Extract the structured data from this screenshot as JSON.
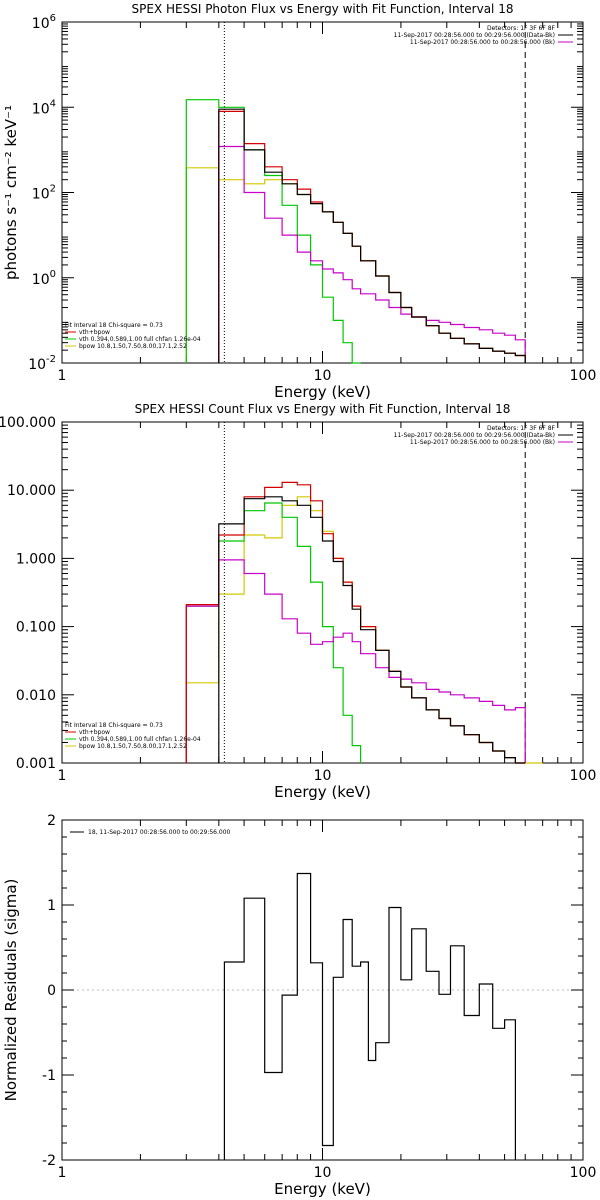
{
  "colors": {
    "background": "#ffffff",
    "axis": "#000000",
    "data": "#000000",
    "sum": "#d40000",
    "vth": "#00c800",
    "bpow": "#d4c800",
    "bk": "#c800c8"
  },
  "chart_data": [
    {
      "type": "line",
      "step": true,
      "title": "SPEX HESSI Photon Flux vs Energy with Fit Function, Interval 18",
      "xlabel": "Energy (keV)",
      "ylabel": "photons s⁻¹ cm⁻² keV⁻¹",
      "xscale": "log",
      "yscale": "log",
      "xlim": [
        1,
        100
      ],
      "ylim": [
        0.01,
        1000000
      ],
      "x_ticks": [
        {
          "v": 1,
          "label": "1"
        },
        {
          "v": 10,
          "label": "10"
        },
        {
          "v": 100,
          "label": "100"
        }
      ],
      "y_ticks": [
        {
          "v": 0.01,
          "base": "10",
          "exp": "-2"
        },
        {
          "v": 1,
          "base": "10",
          "exp": "0"
        },
        {
          "v": 100,
          "base": "10",
          "exp": "2"
        },
        {
          "v": 10000,
          "base": "10",
          "exp": "4"
        },
        {
          "v": 1000000,
          "base": "10",
          "exp": "6"
        }
      ],
      "legend_top": [
        "Detectors: 1F 3F 6F 8F",
        "11-Sep-2017 00:28:56.000 to 00:29:56.000 (Data-Bk)",
        "11-Sep-2017 00:28:56.000 to 00:28:56.000 (Bk)"
      ],
      "legend_bottom": [
        "Fit Interval 18   Chi-square = 0.73",
        "vth+bpow",
        "vth 0.394,0.589,1.00  full chfan 1.26e-04",
        "bpow 10.8,1.50,7.50,8.00,17.1,2.52"
      ],
      "vlines": [
        4.2,
        60
      ],
      "edges": [
        3,
        4,
        5,
        6,
        7,
        8,
        9,
        10,
        11,
        12,
        13,
        14,
        16,
        18,
        20,
        22,
        25,
        28,
        31,
        35,
        40,
        45,
        50,
        55,
        60
      ],
      "series": [
        {
          "name": "Data-Bk",
          "color": "black",
          "values": [
            null,
            9000,
            1000,
            300,
            160,
            90,
            55,
            35,
            20,
            11,
            5.5,
            2.5,
            1.1,
            0.45,
            0.2,
            0.12,
            0.075,
            0.05,
            0.038,
            0.028,
            0.022,
            0.019,
            0.017,
            0.015
          ]
        },
        {
          "name": "vth+bpow",
          "color": "red",
          "values": [
            null,
            8000,
            1400,
            400,
            200,
            120,
            60,
            35,
            20,
            11,
            5.5,
            2.5,
            1.1,
            0.45,
            0.2,
            0.12,
            0.075,
            0.05,
            0.038,
            0.028,
            0.022,
            0.019,
            0.017,
            0.015
          ]
        },
        {
          "name": "vth",
          "color": "green",
          "values": [
            15000,
            10000,
            1000,
            250,
            50,
            10,
            2,
            0.35,
            0.1,
            0.03,
            0.008,
            null,
            null,
            null,
            null,
            null,
            null,
            null,
            null,
            null,
            null,
            null,
            null,
            null
          ]
        },
        {
          "name": "bpow",
          "color": "yellow",
          "values": [
            380,
            200,
            160,
            200,
            160,
            90,
            55,
            35,
            20,
            11,
            5.5,
            2.5,
            1.1,
            0.45,
            0.2,
            0.12,
            0.075,
            0.05,
            0.038,
            0.028,
            0.022,
            0.019,
            0.017,
            0.015
          ]
        },
        {
          "name": "Bk",
          "color": "magenta",
          "values": [
            null,
            1200,
            100,
            25,
            10,
            4,
            2.5,
            1.6,
            1.3,
            0.9,
            0.55,
            0.42,
            0.3,
            0.2,
            0.14,
            0.12,
            0.1,
            0.09,
            0.08,
            0.068,
            0.06,
            0.05,
            0.045,
            0.035
          ]
        }
      ]
    },
    {
      "type": "line",
      "step": true,
      "title": "SPEX HESSI Count Flux vs Energy with Fit Function, Interval 18",
      "xlabel": "Energy (keV)",
      "ylabel": "",
      "xscale": "log",
      "yscale": "log",
      "xlim": [
        1,
        100
      ],
      "ylim": [
        0.001,
        100
      ],
      "x_ticks": [
        {
          "v": 1,
          "label": "1"
        },
        {
          "v": 10,
          "label": "10"
        },
        {
          "v": 100,
          "label": "100"
        }
      ],
      "y_ticks": [
        {
          "v": 0.001,
          "label": "0.001"
        },
        {
          "v": 0.01,
          "label": "0.010"
        },
        {
          "v": 0.1,
          "label": "0.100"
        },
        {
          "v": 1,
          "label": "1.000"
        },
        {
          "v": 10,
          "label": "10.000"
        },
        {
          "v": 100,
          "label": "100.000"
        }
      ],
      "legend_top": [
        "Detectors: 1F 3F 6F 8F",
        "11-Sep-2017 00:28:56.000 to 00:29:56.000 (Data-Bk)",
        "11-Sep-2017 00:28:56.000 to 00:28:56.000 (Bk)"
      ],
      "legend_bottom": [
        "Fit Interval 18   Chi-square = 0.73",
        "vth+bpow",
        "vth 0.394,0.589,1.00  full chfan 1.26e-04",
        "bpow 10.8,1.50,7.50,8.00,17.1,2.52"
      ],
      "vlines": [
        4.2,
        60
      ],
      "edges": [
        3,
        4,
        5,
        6,
        7,
        8,
        9,
        10,
        11,
        12,
        13,
        14,
        16,
        18,
        20,
        22,
        25,
        28,
        31,
        35,
        40,
        45,
        50,
        55,
        60,
        70,
        80
      ],
      "series": [
        {
          "name": "Data-Bk",
          "color": "black",
          "values": [
            null,
            3.2,
            7.5,
            8,
            7,
            6,
            4,
            1.8,
            0.9,
            0.4,
            0.18,
            0.09,
            0.045,
            0.022,
            0.013,
            0.009,
            0.006,
            0.0045,
            0.0035,
            0.0026,
            0.002,
            0.0015,
            0.0012,
            0.001,
            null,
            null
          ]
        },
        {
          "name": "vth+bpow",
          "color": "red",
          "values": [
            0.21,
            2.2,
            8,
            11,
            13,
            12,
            7,
            2.3,
            1,
            0.45,
            0.2,
            0.1,
            0.045,
            0.022,
            0.013,
            0.009,
            0.006,
            0.0045,
            0.0035,
            0.0026,
            0.002,
            0.0015,
            0.0012,
            0.001,
            null,
            null
          ]
        },
        {
          "name": "vth",
          "color": "green",
          "values": [
            0.2,
            1.8,
            5,
            6.5,
            4,
            1.5,
            0.45,
            0.1,
            0.025,
            0.005,
            0.0018,
            null,
            null,
            null,
            null,
            null,
            null,
            null,
            null,
            null,
            null,
            null,
            null,
            null,
            null,
            null
          ]
        },
        {
          "name": "bpow",
          "color": "yellow",
          "values": [
            0.015,
            0.3,
            2.2,
            2,
            6,
            8,
            5,
            2.5,
            1.0,
            0.45,
            0.2,
            0.1,
            0.045,
            0.022,
            0.013,
            0.009,
            0.006,
            0.0045,
            0.0035,
            0.0026,
            0.002,
            0.0015,
            0.0012,
            0.001,
            0.0008,
            null
          ]
        },
        {
          "name": "Bk",
          "color": "magenta",
          "values": [
            0.2,
            0.95,
            0.6,
            0.3,
            0.13,
            0.08,
            0.055,
            0.06,
            0.07,
            0.08,
            0.06,
            0.04,
            0.025,
            0.018,
            0.017,
            0.015,
            0.012,
            0.011,
            0.01,
            0.009,
            0.008,
            0.007,
            0.006,
            0.0065,
            null,
            null
          ]
        }
      ]
    },
    {
      "type": "line",
      "step": true,
      "title": "",
      "xlabel": "Energy (keV)",
      "ylabel": "Normalized Residuals (sigma)",
      "xscale": "log",
      "yscale": "linear",
      "xlim": [
        1,
        100
      ],
      "ylim": [
        -2,
        2
      ],
      "x_ticks": [
        {
          "v": 1,
          "label": "1"
        },
        {
          "v": 10,
          "label": "10"
        },
        {
          "v": 100,
          "label": "100"
        }
      ],
      "y_ticks": [
        {
          "v": -2,
          "label": "-2"
        },
        {
          "v": -1,
          "label": "-1"
        },
        {
          "v": 0,
          "label": "0"
        },
        {
          "v": 1,
          "label": "1"
        },
        {
          "v": 2,
          "label": "2"
        }
      ],
      "legend_top": [
        "18, 11-Sep-2017 00:28:56.000 to 00:29:56.000"
      ],
      "edges": [
        4.2,
        5,
        6,
        7,
        8,
        9,
        10,
        11,
        12,
        13,
        14,
        15,
        16,
        18,
        20,
        22,
        25,
        28,
        31,
        35,
        40,
        45,
        50,
        55,
        60
      ],
      "series": [
        {
          "name": "18, 11-Sep-2017 00:28:56.000 to 00:29:56.000",
          "color": "black",
          "values": [
            0.33,
            1.08,
            -0.97,
            -0.06,
            1.37,
            0.32,
            -1.83,
            0.15,
            0.83,
            0.28,
            0.33,
            -0.83,
            -0.62,
            0.97,
            0.12,
            0.72,
            0.22,
            -0.05,
            0.52,
            -0.3,
            0.07,
            -0.45,
            -0.35,
            null
          ]
        }
      ]
    }
  ]
}
